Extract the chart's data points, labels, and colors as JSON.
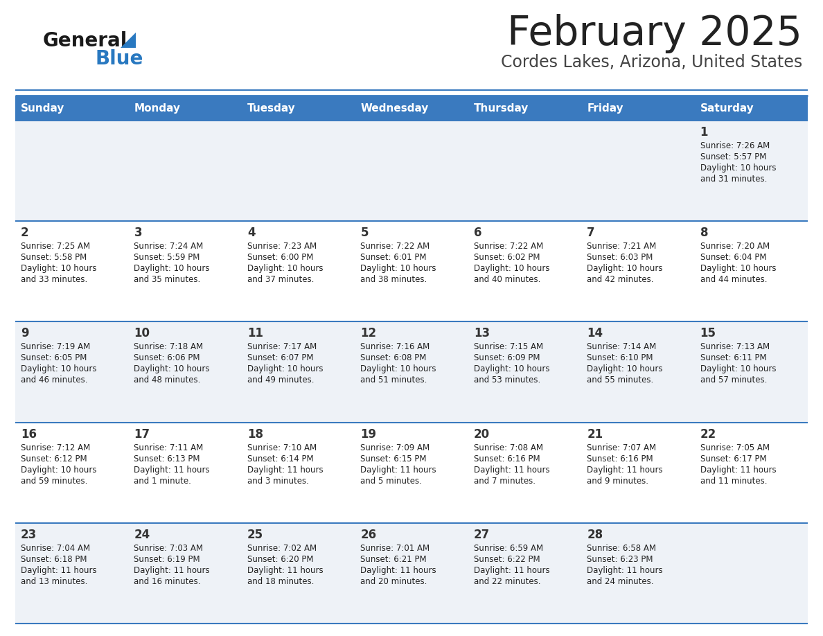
{
  "title": "February 2025",
  "subtitle": "Cordes Lakes, Arizona, United States",
  "days_of_week": [
    "Sunday",
    "Monday",
    "Tuesday",
    "Wednesday",
    "Thursday",
    "Friday",
    "Saturday"
  ],
  "header_bg": "#3a7abf",
  "header_text_color": "#ffffff",
  "row_bg_light": "#eef2f7",
  "row_bg_white": "#ffffff",
  "cell_text_color": "#222222",
  "day_num_color": "#333333",
  "separator_color": "#3a7abf",
  "title_color": "#222222",
  "subtitle_color": "#444444",
  "bg_color": "#ffffff",
  "logo_general_color": "#1a1a1a",
  "logo_blue_color": "#2878c0",
  "logo_triangle_color": "#2878c0",
  "weeks": [
    [
      {
        "day": null,
        "sunrise": null,
        "sunset": null,
        "daylight": null
      },
      {
        "day": null,
        "sunrise": null,
        "sunset": null,
        "daylight": null
      },
      {
        "day": null,
        "sunrise": null,
        "sunset": null,
        "daylight": null
      },
      {
        "day": null,
        "sunrise": null,
        "sunset": null,
        "daylight": null
      },
      {
        "day": null,
        "sunrise": null,
        "sunset": null,
        "daylight": null
      },
      {
        "day": null,
        "sunrise": null,
        "sunset": null,
        "daylight": null
      },
      {
        "day": 1,
        "sunrise": "7:26 AM",
        "sunset": "5:57 PM",
        "daylight": "10 hours\nand 31 minutes."
      }
    ],
    [
      {
        "day": 2,
        "sunrise": "7:25 AM",
        "sunset": "5:58 PM",
        "daylight": "10 hours\nand 33 minutes."
      },
      {
        "day": 3,
        "sunrise": "7:24 AM",
        "sunset": "5:59 PM",
        "daylight": "10 hours\nand 35 minutes."
      },
      {
        "day": 4,
        "sunrise": "7:23 AM",
        "sunset": "6:00 PM",
        "daylight": "10 hours\nand 37 minutes."
      },
      {
        "day": 5,
        "sunrise": "7:22 AM",
        "sunset": "6:01 PM",
        "daylight": "10 hours\nand 38 minutes."
      },
      {
        "day": 6,
        "sunrise": "7:22 AM",
        "sunset": "6:02 PM",
        "daylight": "10 hours\nand 40 minutes."
      },
      {
        "day": 7,
        "sunrise": "7:21 AM",
        "sunset": "6:03 PM",
        "daylight": "10 hours\nand 42 minutes."
      },
      {
        "day": 8,
        "sunrise": "7:20 AM",
        "sunset": "6:04 PM",
        "daylight": "10 hours\nand 44 minutes."
      }
    ],
    [
      {
        "day": 9,
        "sunrise": "7:19 AM",
        "sunset": "6:05 PM",
        "daylight": "10 hours\nand 46 minutes."
      },
      {
        "day": 10,
        "sunrise": "7:18 AM",
        "sunset": "6:06 PM",
        "daylight": "10 hours\nand 48 minutes."
      },
      {
        "day": 11,
        "sunrise": "7:17 AM",
        "sunset": "6:07 PM",
        "daylight": "10 hours\nand 49 minutes."
      },
      {
        "day": 12,
        "sunrise": "7:16 AM",
        "sunset": "6:08 PM",
        "daylight": "10 hours\nand 51 minutes."
      },
      {
        "day": 13,
        "sunrise": "7:15 AM",
        "sunset": "6:09 PM",
        "daylight": "10 hours\nand 53 minutes."
      },
      {
        "day": 14,
        "sunrise": "7:14 AM",
        "sunset": "6:10 PM",
        "daylight": "10 hours\nand 55 minutes."
      },
      {
        "day": 15,
        "sunrise": "7:13 AM",
        "sunset": "6:11 PM",
        "daylight": "10 hours\nand 57 minutes."
      }
    ],
    [
      {
        "day": 16,
        "sunrise": "7:12 AM",
        "sunset": "6:12 PM",
        "daylight": "10 hours\nand 59 minutes."
      },
      {
        "day": 17,
        "sunrise": "7:11 AM",
        "sunset": "6:13 PM",
        "daylight": "11 hours\nand 1 minute."
      },
      {
        "day": 18,
        "sunrise": "7:10 AM",
        "sunset": "6:14 PM",
        "daylight": "11 hours\nand 3 minutes."
      },
      {
        "day": 19,
        "sunrise": "7:09 AM",
        "sunset": "6:15 PM",
        "daylight": "11 hours\nand 5 minutes."
      },
      {
        "day": 20,
        "sunrise": "7:08 AM",
        "sunset": "6:16 PM",
        "daylight": "11 hours\nand 7 minutes."
      },
      {
        "day": 21,
        "sunrise": "7:07 AM",
        "sunset": "6:16 PM",
        "daylight": "11 hours\nand 9 minutes."
      },
      {
        "day": 22,
        "sunrise": "7:05 AM",
        "sunset": "6:17 PM",
        "daylight": "11 hours\nand 11 minutes."
      }
    ],
    [
      {
        "day": 23,
        "sunrise": "7:04 AM",
        "sunset": "6:18 PM",
        "daylight": "11 hours\nand 13 minutes."
      },
      {
        "day": 24,
        "sunrise": "7:03 AM",
        "sunset": "6:19 PM",
        "daylight": "11 hours\nand 16 minutes."
      },
      {
        "day": 25,
        "sunrise": "7:02 AM",
        "sunset": "6:20 PM",
        "daylight": "11 hours\nand 18 minutes."
      },
      {
        "day": 26,
        "sunrise": "7:01 AM",
        "sunset": "6:21 PM",
        "daylight": "11 hours\nand 20 minutes."
      },
      {
        "day": 27,
        "sunrise": "6:59 AM",
        "sunset": "6:22 PM",
        "daylight": "11 hours\nand 22 minutes."
      },
      {
        "day": 28,
        "sunrise": "6:58 AM",
        "sunset": "6:23 PM",
        "daylight": "11 hours\nand 24 minutes."
      },
      {
        "day": null,
        "sunrise": null,
        "sunset": null,
        "daylight": null
      }
    ]
  ]
}
